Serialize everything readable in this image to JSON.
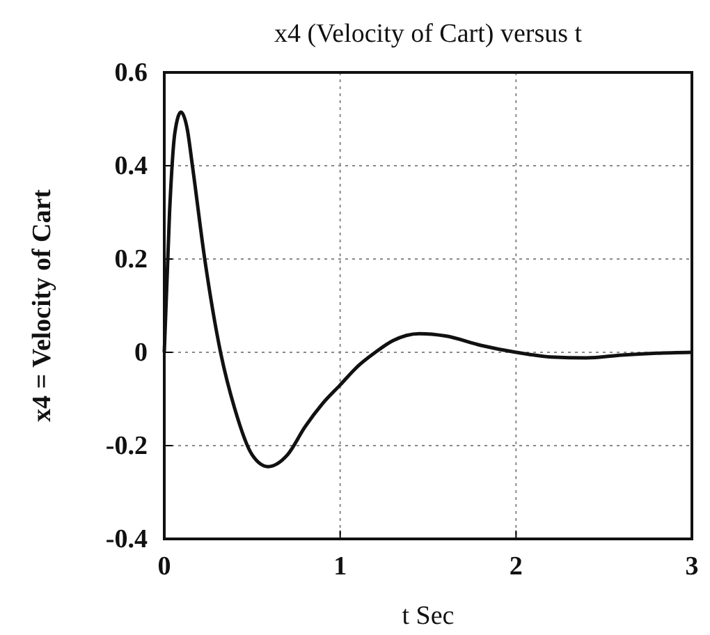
{
  "chart_data": {
    "type": "line",
    "title": "x4 (Velocity of Cart) versus t",
    "xlabel": "t Sec",
    "ylabel": "x4 = Velocity of Cart",
    "x": [
      0,
      0.03,
      0.06,
      0.095,
      0.13,
      0.16,
      0.23,
      0.32,
      0.4,
      0.5,
      0.59,
      0.7,
      0.8,
      0.9,
      1.0,
      1.1,
      1.2,
      1.3,
      1.45,
      1.6,
      1.8,
      2.0,
      2.2,
      2.4,
      2.6,
      2.8,
      3.0
    ],
    "series": [
      {
        "color": "#111111",
        "values": [
          0,
          0.3,
          0.47,
          0.515,
          0.48,
          0.4,
          0.2,
          0,
          -0.12,
          -0.22,
          -0.245,
          -0.22,
          -0.16,
          -0.11,
          -0.07,
          -0.03,
          0,
          0.025,
          0.04,
          0.035,
          0.015,
          0,
          -0.01,
          -0.012,
          -0.006,
          -0.002,
          0
        ]
      }
    ],
    "xlim": [
      0,
      3
    ],
    "xticks": [
      0,
      1,
      2,
      3
    ],
    "ylim": [
      -0.4,
      0.6
    ],
    "yticks": [
      -0.4,
      -0.2,
      0,
      0.2,
      0.4,
      0.6
    ],
    "grid": true,
    "marker": "none",
    "line_style": "solid"
  }
}
